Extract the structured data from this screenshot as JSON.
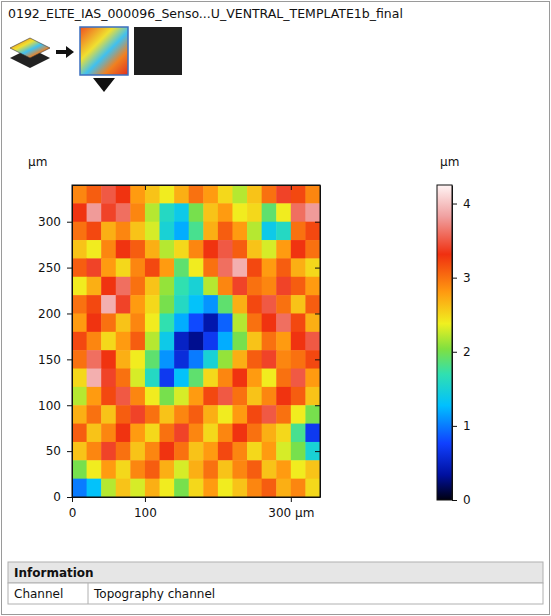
{
  "chart_data": {
    "type": "heatmap",
    "title": "0192_ELTE_IAS_000096_Senso...U_VENTRAL_TEMPLATE1b_final",
    "y_label": "µm",
    "x": [
      10,
      30,
      50,
      70,
      90,
      110,
      130,
      150,
      170,
      190,
      210,
      230,
      250,
      270,
      290,
      310,
      330
    ],
    "y": [
      330,
      310,
      290,
      270,
      250,
      230,
      210,
      190,
      170,
      150,
      130,
      110,
      90,
      70,
      50,
      30,
      10
    ],
    "z": [
      [
        2.9,
        3.1,
        3.5,
        3.3,
        2.8,
        2.6,
        2.4,
        2.7,
        3.0,
        2.8,
        2.5,
        2.2,
        2.6,
        3.0,
        3.4,
        3.2,
        2.9
      ],
      [
        3.3,
        3.8,
        3.4,
        3.6,
        2.9,
        2.2,
        1.6,
        1.4,
        2.0,
        2.6,
        2.8,
        2.4,
        2.5,
        1.9,
        2.4,
        3.6,
        3.8
      ],
      [
        3.0,
        3.2,
        2.7,
        2.9,
        2.6,
        2.3,
        1.5,
        1.2,
        1.8,
        2.7,
        3.1,
        2.8,
        2.2,
        1.4,
        1.6,
        3.0,
        3.2
      ],
      [
        2.6,
        2.4,
        2.9,
        3.3,
        3.1,
        2.7,
        2.2,
        2.5,
        2.9,
        3.3,
        3.5,
        3.1,
        2.6,
        2.3,
        2.8,
        3.3,
        3.0
      ],
      [
        3.1,
        3.4,
        2.8,
        2.5,
        2.9,
        3.2,
        2.8,
        1.9,
        2.4,
        3.0,
        3.6,
        3.9,
        3.2,
        2.8,
        3.1,
        2.7,
        2.5
      ],
      [
        2.4,
        2.7,
        3.3,
        3.6,
        3.0,
        2.6,
        2.1,
        1.7,
        1.5,
        2.2,
        2.9,
        3.4,
        3.0,
        2.9,
        3.4,
        3.1,
        2.8
      ],
      [
        3.0,
        3.2,
        3.9,
        3.4,
        2.8,
        2.5,
        2.0,
        1.6,
        1.3,
        1.1,
        1.9,
        2.7,
        3.2,
        3.5,
        3.0,
        2.6,
        3.1
      ],
      [
        2.8,
        3.3,
        3.0,
        2.6,
        2.9,
        2.4,
        1.7,
        1.2,
        0.8,
        0.4,
        0.9,
        2.2,
        3.0,
        3.3,
        3.6,
        3.2,
        2.7
      ],
      [
        3.2,
        2.9,
        2.5,
        2.8,
        3.1,
        2.2,
        1.4,
        0.5,
        0.3,
        0.7,
        1.2,
        2.0,
        2.6,
        3.0,
        2.8,
        3.3,
        3.5
      ],
      [
        3.0,
        3.6,
        3.3,
        2.7,
        2.4,
        1.9,
        1.1,
        0.6,
        1.0,
        1.5,
        2.1,
        2.7,
        3.1,
        3.4,
        2.9,
        3.0,
        3.2
      ],
      [
        2.5,
        3.9,
        3.4,
        3.0,
        2.3,
        1.6,
        0.7,
        1.3,
        1.9,
        2.5,
        2.9,
        3.3,
        2.8,
        2.4,
        3.0,
        3.5,
        2.8
      ],
      [
        2.2,
        2.8,
        3.2,
        3.5,
        2.9,
        2.4,
        2.0,
        2.3,
        2.8,
        3.2,
        3.5,
        3.0,
        2.6,
        2.9,
        3.3,
        3.1,
        2.6
      ],
      [
        2.7,
        3.0,
        2.6,
        3.1,
        3.4,
        3.0,
        2.6,
        2.9,
        3.1,
        2.7,
        2.4,
        2.8,
        3.2,
        3.5,
        3.0,
        2.4,
        2.0
      ],
      [
        3.1,
        2.6,
        2.9,
        3.3,
        2.8,
        2.5,
        3.0,
        3.4,
        2.9,
        2.5,
        2.9,
        3.3,
        3.0,
        2.7,
        2.5,
        1.8,
        0.7
      ],
      [
        2.6,
        2.9,
        3.4,
        3.0,
        2.6,
        2.9,
        3.3,
        3.0,
        2.6,
        2.8,
        3.2,
        2.9,
        2.5,
        2.8,
        2.3,
        2.0,
        1.5
      ],
      [
        2.0,
        2.4,
        2.8,
        2.5,
        2.9,
        3.1,
        2.7,
        2.3,
        2.7,
        3.0,
        2.6,
        2.9,
        3.1,
        2.6,
        2.8,
        2.4,
        2.6
      ],
      [
        1.0,
        1.3,
        2.2,
        2.6,
        2.3,
        2.7,
        2.4,
        2.0,
        2.5,
        2.8,
        2.4,
        2.6,
        2.9,
        3.1,
        2.7,
        2.9,
        2.5
      ]
    ],
    "xlim": [
      0,
      340
    ],
    "ylim": [
      0,
      340
    ],
    "xticks": [
      0,
      100,
      {
        "value": 300,
        "label": "300 µm"
      }
    ],
    "yticks": [
      0,
      50,
      100,
      150,
      200,
      250,
      300
    ],
    "colorbar": {
      "label": "µm",
      "range": [
        0,
        4.25
      ],
      "ticks": [
        0,
        1,
        2,
        3,
        4
      ]
    }
  },
  "information": {
    "title": "Information",
    "rows": [
      [
        "Channel",
        "Topography channel"
      ]
    ]
  }
}
